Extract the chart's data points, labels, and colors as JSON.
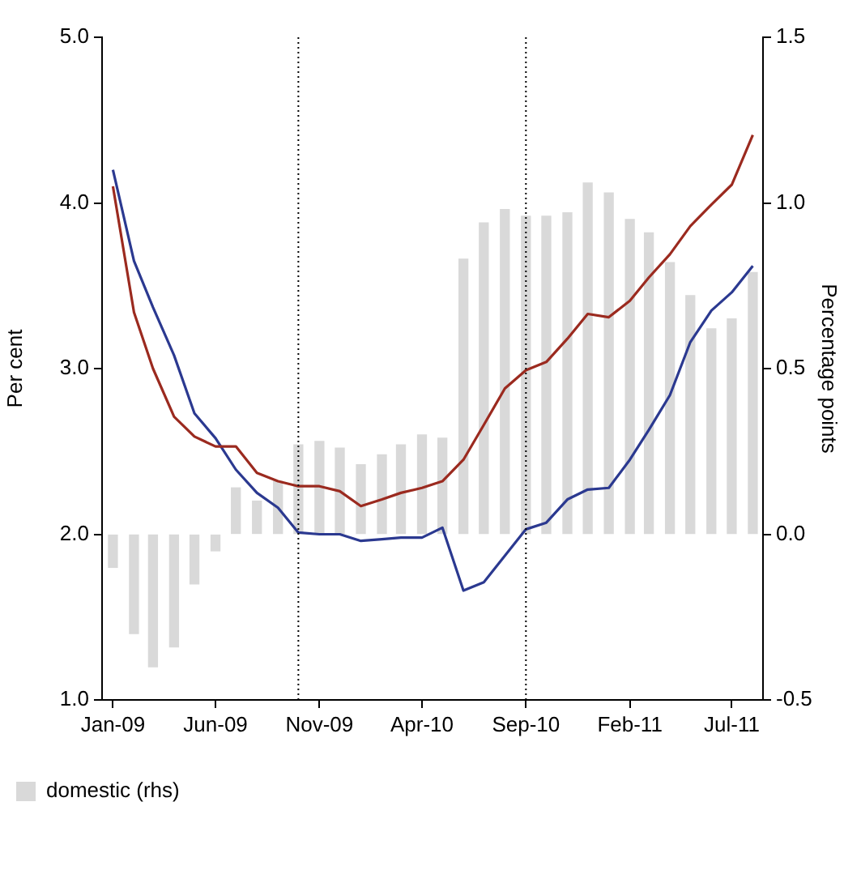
{
  "chart_data": {
    "type": "line",
    "ylabel": "Per cent",
    "y2label": "Percentage points",
    "x": [
      "2009-01",
      "2009-02",
      "2009-03",
      "2009-04",
      "2009-05",
      "2009-06",
      "2009-07",
      "2009-08",
      "2009-09",
      "2009-10",
      "2009-11",
      "2009-12",
      "2010-01",
      "2010-02",
      "2010-03",
      "2010-04",
      "2010-05",
      "2010-06",
      "2010-07",
      "2010-08",
      "2010-09",
      "2010-10",
      "2010-11",
      "2010-12",
      "2011-01",
      "2011-02",
      "2011-03",
      "2011-04",
      "2011-05",
      "2011-06",
      "2011-07",
      "2011-08"
    ],
    "series": [
      {
        "name": "domestic (rhs)",
        "type": "bar",
        "axis": "y2",
        "color": "#d9d9d9",
        "values": [
          -0.1,
          -0.3,
          -0.4,
          -0.34,
          -0.15,
          -0.05,
          0.14,
          0.1,
          0.16,
          0.27,
          0.28,
          0.26,
          0.21,
          0.24,
          0.27,
          0.3,
          0.29,
          0.83,
          0.94,
          0.98,
          0.96,
          0.96,
          0.97,
          1.06,
          1.03,
          0.95,
          0.91,
          0.82,
          0.72,
          0.62,
          0.65,
          0.79
        ]
      },
      {
        "color": "#9b2a1f",
        "values": [
          4.1,
          3.34,
          3.0,
          2.71,
          2.59,
          2.53,
          2.53,
          2.37,
          2.32,
          2.29,
          2.29,
          2.26,
          2.17,
          2.21,
          2.25,
          2.28,
          2.32,
          2.45,
          2.66,
          2.88,
          2.99,
          3.04,
          3.18,
          3.33,
          3.31,
          3.41,
          3.55,
          3.69,
          3.86,
          3.99,
          4.11,
          4.41
        ]
      },
      {
        "color": "#2b3990",
        "values": [
          4.2,
          3.65,
          3.37,
          3.08,
          2.73,
          2.58,
          2.39,
          2.25,
          2.16,
          2.01,
          2.0,
          2.0,
          1.96,
          1.97,
          1.98,
          1.98,
          2.04,
          1.66,
          1.71,
          1.87,
          2.03,
          2.07,
          2.21,
          2.27,
          2.28,
          2.45,
          2.63,
          2.84,
          3.16,
          3.35,
          3.46,
          3.62
        ]
      }
    ],
    "xlim": [
      "2008-12-16",
      "2011-08-16"
    ],
    "xticks": [
      {
        "value": "2009-01",
        "label": "Jan-09"
      },
      {
        "value": "2009-06",
        "label": "Jun-09"
      },
      {
        "value": "2009-11",
        "label": "Nov-09"
      },
      {
        "value": "2010-04",
        "label": "Apr-10"
      },
      {
        "value": "2010-09",
        "label": "Sep-10"
      },
      {
        "value": "2011-02",
        "label": "Feb-11"
      },
      {
        "value": "2011-07",
        "label": "Jul-11"
      }
    ],
    "ylim": [
      1,
      5
    ],
    "yticks": [
      {
        "value": 1,
        "label": "1.0"
      },
      {
        "value": 2,
        "label": "2.0"
      },
      {
        "value": 3,
        "label": "3.0"
      },
      {
        "value": 4,
        "label": "4.0"
      },
      {
        "value": 5,
        "label": "5.0"
      }
    ],
    "y2lim": [
      -0.5,
      1.5
    ],
    "y2ticks": [
      {
        "value": -0.5,
        "label": "-0.5"
      },
      {
        "value": 0,
        "label": "0.0"
      },
      {
        "value": 0.5,
        "label": "0.5"
      },
      {
        "value": 1,
        "label": "1.0"
      },
      {
        "value": 1.5,
        "label": "1.5"
      }
    ],
    "ref_lines": [
      {
        "axis": "x",
        "value": "2009-10",
        "color": "#000000",
        "line_style": "dotted"
      },
      {
        "axis": "x",
        "value": "2010-09",
        "color": "#000000",
        "line_style": "dotted"
      }
    ],
    "grid": false,
    "legend": "bottom",
    "marker": "none",
    "line_style": "solid"
  }
}
